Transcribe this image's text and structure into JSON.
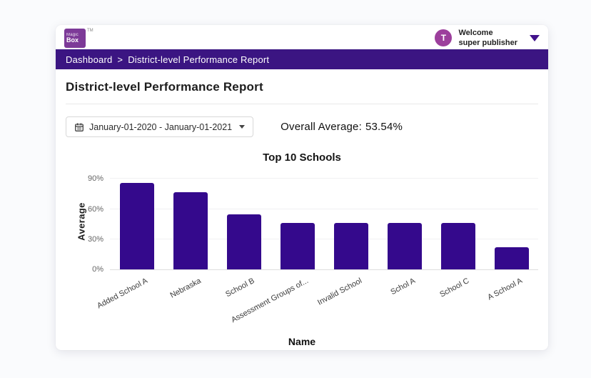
{
  "header": {
    "logo": {
      "line1": "Magic",
      "line2": "Box",
      "tm": "TM"
    },
    "user": {
      "avatar_initial": "T",
      "welcome": "Welcome",
      "name": "super publisher"
    }
  },
  "breadcrumb": {
    "home": "Dashboard",
    "separator": ">",
    "current": "District-level Performance Report"
  },
  "page": {
    "title": "District-level Performance Report"
  },
  "controls": {
    "date_range": "January-01-2020 - January-01-2021",
    "overall_average_label": "Overall Average:",
    "overall_average_value": "53.54%"
  },
  "colors": {
    "brand_purple": "#3b1582",
    "bar": "#34098c",
    "logo_purple": "#7d3a98",
    "avatar_magenta": "#9c3f9c",
    "caret_purple": "#41128b"
  },
  "chart_data": {
    "type": "bar",
    "title": "Top 10 Schools",
    "xlabel": "Name",
    "ylabel": "Average",
    "categories": [
      "Added School A",
      "Nebraska",
      "School B",
      "Assessment Groups of...",
      "Invalid School",
      "Schol A",
      "School C",
      "A School A"
    ],
    "values": [
      86,
      77,
      55,
      46,
      46,
      46,
      46,
      22
    ],
    "unit": "%",
    "yticks": [
      "0%",
      "30%",
      "60%",
      "90%"
    ],
    "ytick_values": [
      0,
      30,
      60,
      90
    ],
    "ylim": [
      0,
      96
    ],
    "grid": true,
    "legend": false,
    "bar_color": "#34098c"
  }
}
